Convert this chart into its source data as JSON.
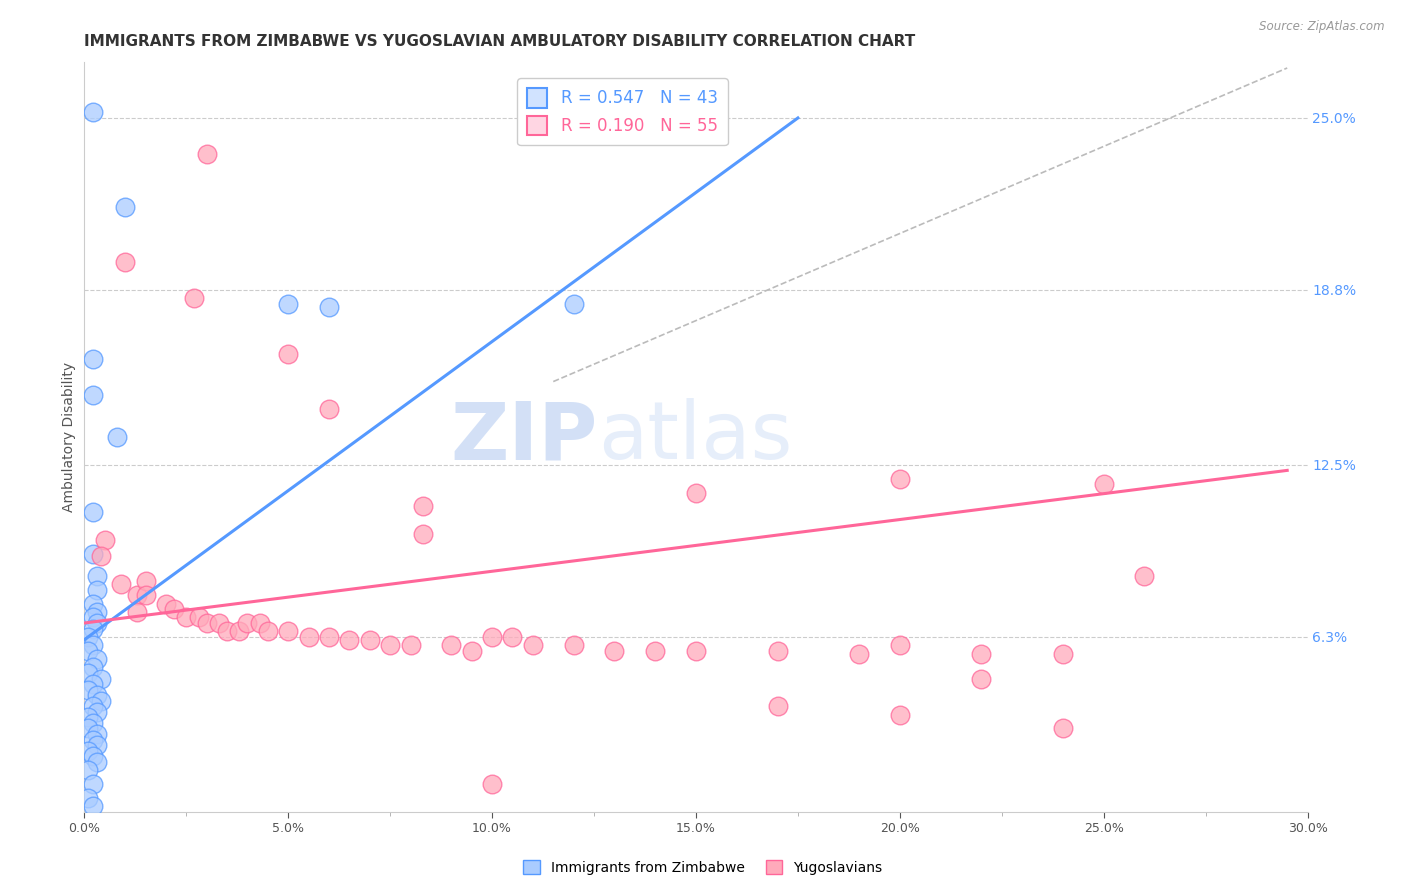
{
  "title": "IMMIGRANTS FROM ZIMBABWE VS YUGOSLAVIAN AMBULATORY DISABILITY CORRELATION CHART",
  "source": "Source: ZipAtlas.com",
  "ylabel": "Ambulatory Disability",
  "xlim": [
    0.0,
    0.3
  ],
  "ylim": [
    0.0,
    0.27
  ],
  "xtick_labels": [
    "0.0%",
    "",
    "5.0%",
    "",
    "10.0%",
    "",
    "15.0%",
    "",
    "20.0%",
    "",
    "25.0%",
    "",
    "30.0%"
  ],
  "xtick_vals": [
    0.0,
    0.025,
    0.05,
    0.075,
    0.1,
    0.125,
    0.15,
    0.175,
    0.2,
    0.225,
    0.25,
    0.275,
    0.3
  ],
  "ytick_right_labels": [
    "25.0%",
    "18.8%",
    "12.5%",
    "6.3%"
  ],
  "ytick_right_vals": [
    0.25,
    0.188,
    0.125,
    0.063
  ],
  "legend_entries": [
    {
      "label": "R = 0.547   N = 43",
      "color": "#5599ff"
    },
    {
      "label": "R = 0.190   N = 55",
      "color": "#ff6699"
    }
  ],
  "watermark_zip": "ZIP",
  "watermark_atlas": "atlas",
  "blue_scatter": [
    [
      0.002,
      0.252
    ],
    [
      0.01,
      0.218
    ],
    [
      0.002,
      0.163
    ],
    [
      0.002,
      0.15
    ],
    [
      0.002,
      0.108
    ],
    [
      0.05,
      0.183
    ],
    [
      0.06,
      0.182
    ],
    [
      0.12,
      0.183
    ],
    [
      0.008,
      0.135
    ],
    [
      0.002,
      0.093
    ],
    [
      0.003,
      0.085
    ],
    [
      0.003,
      0.08
    ],
    [
      0.002,
      0.075
    ],
    [
      0.003,
      0.072
    ],
    [
      0.002,
      0.07
    ],
    [
      0.003,
      0.068
    ],
    [
      0.002,
      0.066
    ],
    [
      0.001,
      0.063
    ],
    [
      0.002,
      0.06
    ],
    [
      0.001,
      0.058
    ],
    [
      0.003,
      0.055
    ],
    [
      0.002,
      0.052
    ],
    [
      0.001,
      0.05
    ],
    [
      0.004,
      0.048
    ],
    [
      0.002,
      0.046
    ],
    [
      0.001,
      0.044
    ],
    [
      0.003,
      0.042
    ],
    [
      0.004,
      0.04
    ],
    [
      0.002,
      0.038
    ],
    [
      0.003,
      0.036
    ],
    [
      0.001,
      0.034
    ],
    [
      0.002,
      0.032
    ],
    [
      0.001,
      0.03
    ],
    [
      0.003,
      0.028
    ],
    [
      0.002,
      0.026
    ],
    [
      0.003,
      0.024
    ],
    [
      0.001,
      0.022
    ],
    [
      0.002,
      0.02
    ],
    [
      0.003,
      0.018
    ],
    [
      0.001,
      0.015
    ],
    [
      0.002,
      0.01
    ],
    [
      0.001,
      0.005
    ],
    [
      0.002,
      0.002
    ]
  ],
  "pink_scatter": [
    [
      0.03,
      0.237
    ],
    [
      0.01,
      0.198
    ],
    [
      0.027,
      0.185
    ],
    [
      0.05,
      0.165
    ],
    [
      0.06,
      0.145
    ],
    [
      0.083,
      0.11
    ],
    [
      0.083,
      0.1
    ],
    [
      0.005,
      0.098
    ],
    [
      0.004,
      0.092
    ],
    [
      0.009,
      0.082
    ],
    [
      0.013,
      0.078
    ],
    [
      0.013,
      0.072
    ],
    [
      0.015,
      0.083
    ],
    [
      0.015,
      0.078
    ],
    [
      0.02,
      0.075
    ],
    [
      0.022,
      0.073
    ],
    [
      0.025,
      0.07
    ],
    [
      0.028,
      0.07
    ],
    [
      0.03,
      0.068
    ],
    [
      0.033,
      0.068
    ],
    [
      0.035,
      0.065
    ],
    [
      0.038,
      0.065
    ],
    [
      0.04,
      0.068
    ],
    [
      0.043,
      0.068
    ],
    [
      0.045,
      0.065
    ],
    [
      0.05,
      0.065
    ],
    [
      0.055,
      0.063
    ],
    [
      0.06,
      0.063
    ],
    [
      0.065,
      0.062
    ],
    [
      0.07,
      0.062
    ],
    [
      0.075,
      0.06
    ],
    [
      0.08,
      0.06
    ],
    [
      0.09,
      0.06
    ],
    [
      0.095,
      0.058
    ],
    [
      0.1,
      0.063
    ],
    [
      0.105,
      0.063
    ],
    [
      0.11,
      0.06
    ],
    [
      0.12,
      0.06
    ],
    [
      0.13,
      0.058
    ],
    [
      0.14,
      0.058
    ],
    [
      0.15,
      0.115
    ],
    [
      0.17,
      0.058
    ],
    [
      0.19,
      0.057
    ],
    [
      0.15,
      0.058
    ],
    [
      0.2,
      0.12
    ],
    [
      0.22,
      0.057
    ],
    [
      0.24,
      0.057
    ],
    [
      0.17,
      0.038
    ],
    [
      0.2,
      0.06
    ],
    [
      0.22,
      0.048
    ],
    [
      0.25,
      0.118
    ],
    [
      0.26,
      0.085
    ],
    [
      0.2,
      0.035
    ],
    [
      0.24,
      0.03
    ],
    [
      0.1,
      0.01
    ]
  ],
  "blue_line_x": [
    0.0,
    0.175
  ],
  "blue_line_y": [
    0.062,
    0.25
  ],
  "pink_line_x": [
    0.0,
    0.295
  ],
  "pink_line_y": [
    0.068,
    0.123
  ],
  "diag_line_x": [
    0.115,
    0.295
  ],
  "diag_line_y": [
    0.155,
    0.268
  ],
  "blue_color": "#5599ff",
  "pink_color": "#ff6699",
  "blue_fill": "#aaccff",
  "pink_fill": "#ffaabb",
  "background_color": "#ffffff",
  "grid_color": "#cccccc",
  "title_fontsize": 11,
  "axis_label_fontsize": 10,
  "tick_fontsize": 9
}
